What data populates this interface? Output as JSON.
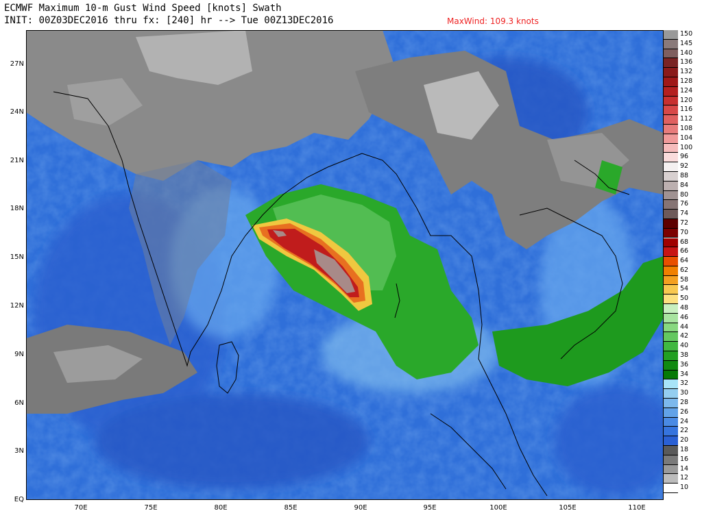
{
  "header": {
    "title": "ECMWF Maximum 10-m Gust Wind Speed [knots] Swath",
    "subtitle": "INIT: 00Z03DEC2016 thru fx: [240] hr --> Tue 00Z13DEC2016",
    "max_wind": "MaxWind: 109.3 knots"
  },
  "axes": {
    "lat_labels": [
      "27N",
      "24N",
      "21N",
      "18N",
      "15N",
      "12N",
      "9N",
      "6N",
      "3N",
      "EQ"
    ],
    "lon_labels": [
      "70E",
      "75E",
      "80E",
      "85E",
      "90E",
      "95E",
      "100E",
      "105E",
      "110E"
    ]
  },
  "colorbar": {
    "labels": [
      "150",
      "145",
      "140",
      "136",
      "132",
      "128",
      "124",
      "120",
      "116",
      "112",
      "108",
      "104",
      "100",
      "96",
      "92",
      "88",
      "84",
      "80",
      "76",
      "74",
      "72",
      "70",
      "68",
      "66",
      "64",
      "62",
      "58",
      "54",
      "50",
      "48",
      "46",
      "44",
      "42",
      "40",
      "38",
      "36",
      "34",
      "32",
      "30",
      "28",
      "26",
      "24",
      "22",
      "20",
      "18",
      "16",
      "14",
      "12",
      "10"
    ],
    "colors": [
      "#999999",
      "#8a7a7a",
      "#7f5f5f",
      "#7a2424",
      "#8a1a1a",
      "#a01818",
      "#b42020",
      "#c83030",
      "#d84848",
      "#e06060",
      "#e87c7c",
      "#f09a9a",
      "#f6bcbc",
      "#fadcdc",
      "#f4f0f0",
      "#d8d0d0",
      "#bcb0b0",
      "#a09292",
      "#867474",
      "#6e5a5a",
      "#5e0000",
      "#7c0000",
      "#a00000",
      "#c81414",
      "#e85000",
      "#f08000",
      "#f4a020",
      "#f8c850",
      "#fce080",
      "#c8f0c0",
      "#a8e4a0",
      "#88d880",
      "#64c860",
      "#40b840",
      "#22a022",
      "#108a10",
      "#067a06",
      "#a8e4f8",
      "#94cef0",
      "#7cb8ec",
      "#62a2e8",
      "#4a8ae4",
      "#3674de",
      "#2a60d4",
      "#5a5a5a",
      "#7a7a7a",
      "#9a9a9a",
      "#bcbcbc",
      "#ffffff"
    ]
  },
  "map": {
    "background_ocean": "#2e6ed8",
    "land_gray": "#8c8c8c",
    "storm_core": "#d04020"
  }
}
